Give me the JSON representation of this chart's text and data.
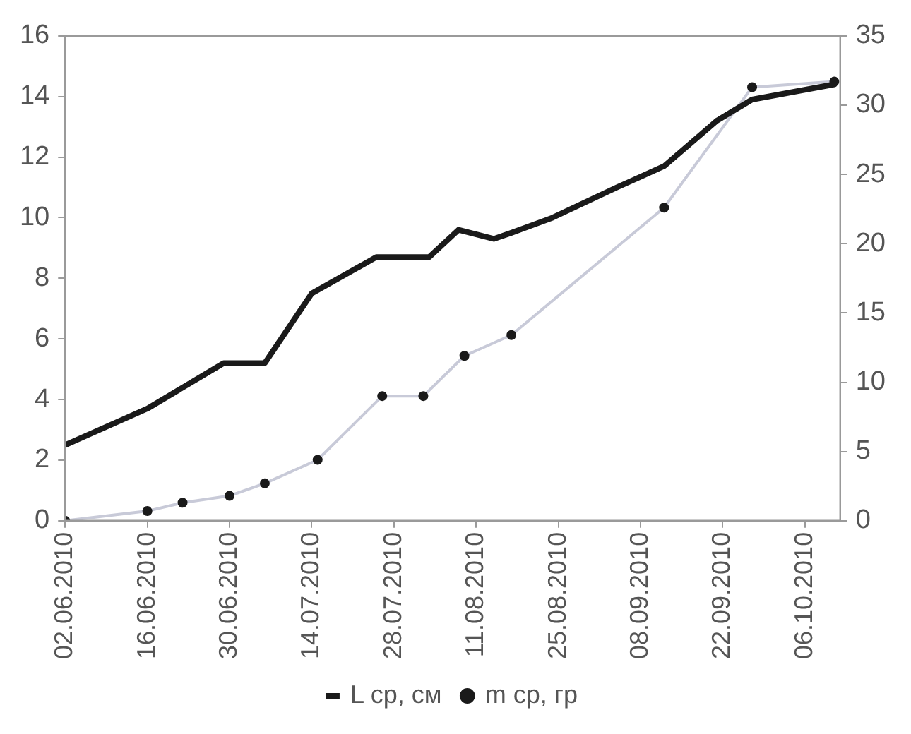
{
  "chart_data": {
    "type": "line",
    "xlim": [
      "2010-06-02",
      "2010-10-12"
    ],
    "xticks": [
      {
        "value": "2010-06-02",
        "label": "02.06.2010"
      },
      {
        "value": "2010-06-16",
        "label": "16.06.2010"
      },
      {
        "value": "2010-06-30",
        "label": "30.06.2010"
      },
      {
        "value": "2010-07-14",
        "label": "14.07.2010"
      },
      {
        "value": "2010-07-28",
        "label": "28.07.2010"
      },
      {
        "value": "2010-08-11",
        "label": "11.08.2010"
      },
      {
        "value": "2010-08-25",
        "label": "25.08.2010"
      },
      {
        "value": "2010-09-08",
        "label": "08.09.2010"
      },
      {
        "value": "2010-09-22",
        "label": "22.09.2010"
      },
      {
        "value": "2010-10-06",
        "label": "06.10.2010"
      }
    ],
    "ylim": [
      0,
      16
    ],
    "yticks": [
      0,
      2,
      4,
      6,
      8,
      10,
      12,
      14,
      16
    ],
    "y2lim": [
      0,
      35
    ],
    "y2ticks": [
      0,
      5,
      10,
      15,
      20,
      25,
      30,
      35
    ],
    "grid": false,
    "legend": "bottom",
    "line_style": "solid",
    "series": [
      {
        "name": "L ср, см",
        "color": "#1a1a1a",
        "marker": "none",
        "x": [
          "2010-06-02",
          "2010-06-16",
          "2010-06-29",
          "2010-07-06",
          "2010-07-14",
          "2010-07-25",
          "2010-08-03",
          "2010-08-08",
          "2010-08-14",
          "2010-08-17",
          "2010-08-24",
          "2010-09-04",
          "2010-09-12",
          "2010-09-21",
          "2010-09-27",
          "2010-10-11"
        ],
        "values": [
          2.5,
          3.7,
          5.2,
          5.2,
          7.5,
          8.7,
          8.7,
          9.6,
          9.3,
          9.5,
          10.0,
          11.0,
          11.7,
          13.2,
          13.9,
          14.4
        ]
      },
      {
        "name": "m ср, гр",
        "color": "#c8cad8",
        "marker": "circle",
        "axis": "y2",
        "x": [
          "2010-06-02",
          "2010-06-16",
          "2010-06-22",
          "2010-06-30",
          "2010-07-06",
          "2010-07-15",
          "2010-07-26",
          "2010-08-02",
          "2010-08-09",
          "2010-08-17",
          "2010-09-12",
          "2010-09-27",
          "2010-10-11"
        ],
        "values": [
          0,
          0.7,
          1.3,
          1.8,
          2.7,
          4.4,
          9.0,
          9.0,
          11.9,
          13.4,
          22.6,
          31.3,
          31.7
        ]
      }
    ]
  }
}
